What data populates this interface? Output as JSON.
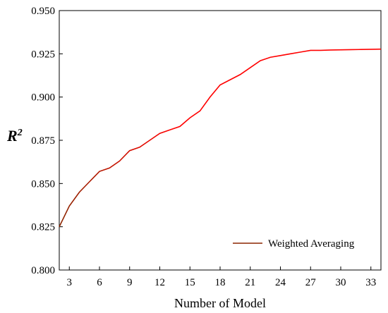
{
  "chart_data": {
    "type": "line",
    "xlabel": "Number of Model",
    "ylabel_base": "R",
    "ylabel_sup": "2",
    "xlim": [
      2,
      34
    ],
    "ylim": [
      0.8,
      0.95
    ],
    "xticks": [
      3,
      6,
      9,
      12,
      15,
      18,
      21,
      24,
      27,
      30,
      33
    ],
    "yticks": [
      0.8,
      0.825,
      0.85,
      0.875,
      0.9,
      0.925,
      0.95
    ],
    "ytick_labels": [
      "0.800",
      "0.825",
      "0.850",
      "0.875",
      "0.900",
      "0.925",
      "0.950"
    ],
    "grid": false,
    "legend_position": "bottom-right",
    "series": [
      {
        "name": "Weighted Averaging",
        "color_start": "#8B2500",
        "color_end": "#ff0000",
        "x": [
          2,
          3,
          4,
          5,
          6,
          7,
          8,
          9,
          10,
          11,
          12,
          13,
          14,
          15,
          16,
          17,
          18,
          19,
          20,
          21,
          22,
          23,
          24,
          25,
          26,
          27,
          28,
          29,
          30,
          31,
          32,
          33,
          34
        ],
        "values": [
          0.825,
          0.837,
          0.845,
          0.851,
          0.857,
          0.859,
          0.863,
          0.869,
          0.871,
          0.875,
          0.879,
          0.881,
          0.883,
          0.888,
          0.892,
          0.9,
          0.907,
          0.91,
          0.913,
          0.917,
          0.921,
          0.923,
          0.924,
          0.925,
          0.926,
          0.927,
          0.927,
          0.9272,
          0.9273,
          0.9274,
          0.9275,
          0.9276,
          0.9277
        ]
      }
    ]
  }
}
